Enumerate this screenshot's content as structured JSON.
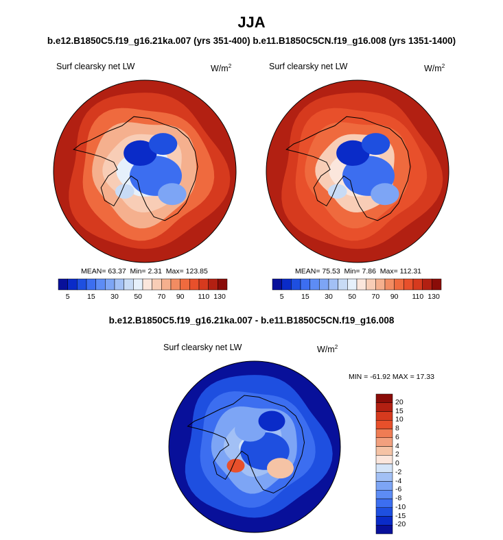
{
  "title": "JJA",
  "subtitle": "b.e12.B1850C5.f19_g16.21ka.007 (yrs 351-400) b.e11.B1850C5CN.f19_g16.008 (yrs 1351-1400)",
  "colors": {
    "blue_scale": [
      "#08109a",
      "#0a2bc8",
      "#1e4fe0",
      "#3c6ef0",
      "#5d8cf5",
      "#7da5f5",
      "#a2c0f5",
      "#c8dbf5",
      "#e6f0fb"
    ],
    "red_scale": [
      "#fbe6dc",
      "#f8cdb6",
      "#f5b08e",
      "#f28c62",
      "#ef6a3e",
      "#e8502b",
      "#d63a1e",
      "#b22012",
      "#8a0c08"
    ],
    "continent_outline": "#000000"
  },
  "chart_data": [
    {
      "type": "heatmap",
      "projection": "south-polar-stereographic",
      "label": "Surf clearsky net LW",
      "units_base": "W/m",
      "units_exp": "2",
      "stats": {
        "mean_label": "MEAN=",
        "mean": "63.37",
        "min_label": "Min=",
        "min": "2.31",
        "max_label": "Max=",
        "max": "123.85"
      },
      "colorbar": {
        "ticks": [
          "5",
          "15",
          "30",
          "50",
          "70",
          "90",
          "110",
          "130"
        ],
        "levels": [
          5,
          10,
          15,
          20,
          30,
          40,
          50,
          60,
          70,
          80,
          90,
          100,
          110,
          120,
          130
        ]
      },
      "ring_levels": [
        118,
        100,
        86,
        72,
        60,
        46,
        32
      ]
    },
    {
      "type": "heatmap",
      "projection": "south-polar-stereographic",
      "label": "Surf clearsky net LW",
      "units_base": "W/m",
      "units_exp": "2",
      "stats": {
        "mean_label": "MEAN=",
        "mean": "75.53",
        "min_label": "Min=",
        "min": "7.86",
        "max_label": "Max=",
        "max": "112.31"
      },
      "colorbar": {
        "ticks": [
          "5",
          "15",
          "30",
          "50",
          "70",
          "90",
          "110",
          "130"
        ],
        "levels": [
          5,
          10,
          15,
          20,
          30,
          40,
          50,
          60,
          70,
          80,
          90,
          100,
          110,
          120,
          130
        ]
      },
      "ring_levels": [
        112,
        105,
        94,
        80,
        66,
        52,
        36
      ]
    },
    {
      "type": "heatmap",
      "projection": "south-polar-stereographic",
      "title": "b.e12.B1850C5.f19_g16.21ka.007 - b.e11.B1850C5CN.f19_g16.008",
      "label": "Surf clearsky net LW",
      "units_base": "W/m",
      "units_exp": "2",
      "stats": {
        "min_label": "MIN =",
        "min": "-61.92",
        "max_label": "MAX =",
        "max": "17.33"
      },
      "colorbar": {
        "ticks": [
          "20",
          "15",
          "10",
          "8",
          "6",
          "4",
          "2",
          "0",
          "-2",
          "-4",
          "-6",
          "-8",
          "-10",
          "-15",
          "-20"
        ]
      },
      "ring_levels": [
        -22,
        -15,
        -9,
        -5,
        -3,
        -1
      ]
    }
  ]
}
